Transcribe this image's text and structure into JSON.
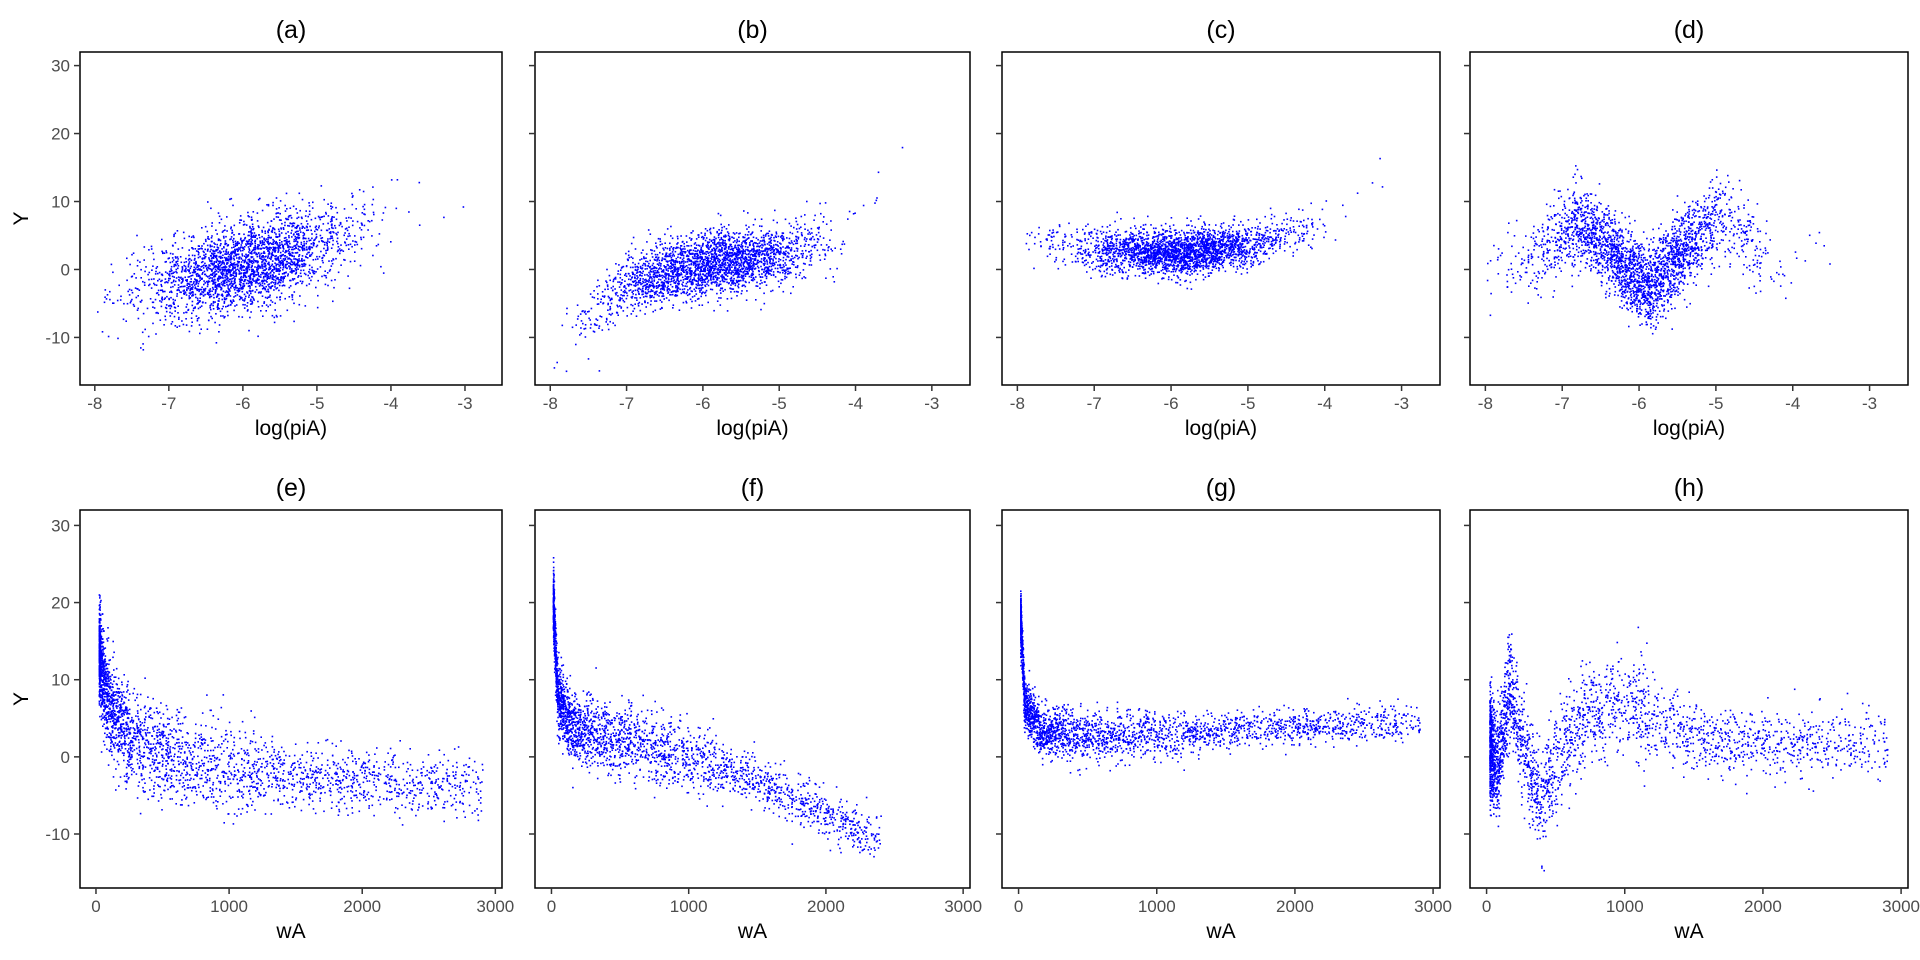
{
  "chart_data": [
    {
      "type": "scatter",
      "panel": "(a)",
      "title": "(a)",
      "xlabel": "log(piA)",
      "ylabel": "Y",
      "xlim": [
        -8.2,
        -2.5
      ],
      "ylim": [
        -17,
        32
      ],
      "xticks": [
        -8,
        -7,
        -6,
        -5,
        -4,
        -3
      ],
      "yticks": [
        -10,
        0,
        10,
        20,
        30
      ],
      "show_ytick_labels": true,
      "point_color": "#0000ff",
      "trend": [
        [
          -8.0,
          -3.5
        ],
        [
          -7.0,
          -2.0
        ],
        [
          -6.0,
          0.5
        ],
        [
          -5.0,
          3.5
        ],
        [
          -4.0,
          8.0
        ],
        [
          -3.2,
          13.0
        ]
      ],
      "spread": 3.2,
      "x_range": [
        -8.0,
        -2.9
      ]
    },
    {
      "type": "scatter",
      "panel": "(b)",
      "title": "(b)",
      "xlabel": "log(piA)",
      "ylabel": "",
      "xlim": [
        -8.2,
        -2.5
      ],
      "ylim": [
        -17,
        32
      ],
      "xticks": [
        -8,
        -7,
        -6,
        -5,
        -4,
        -3
      ],
      "yticks": [
        -10,
        0,
        10,
        20,
        30
      ],
      "show_ytick_labels": false,
      "point_color": "#0000ff",
      "trend": [
        [
          -8.0,
          -14.0
        ],
        [
          -7.5,
          -7.0
        ],
        [
          -7.0,
          -2.0
        ],
        [
          -6.0,
          1.0
        ],
        [
          -5.0,
          2.0
        ],
        [
          -4.2,
          5.0
        ],
        [
          -3.6,
          12.0
        ],
        [
          -3.0,
          24.0
        ]
      ],
      "spread": 2.3,
      "x_range": [
        -8.0,
        -2.9
      ]
    },
    {
      "type": "scatter",
      "panel": "(c)",
      "title": "(c)",
      "xlabel": "log(piA)",
      "ylabel": "",
      "xlim": [
        -8.2,
        -2.5
      ],
      "ylim": [
        -17,
        32
      ],
      "xticks": [
        -8,
        -7,
        -6,
        -5,
        -4,
        -3
      ],
      "yticks": [
        -10,
        0,
        10,
        20,
        30
      ],
      "show_ytick_labels": false,
      "point_color": "#0000ff",
      "trend": [
        [
          -8.0,
          4.5
        ],
        [
          -7.0,
          3.0
        ],
        [
          -6.0,
          2.5
        ],
        [
          -5.0,
          3.5
        ],
        [
          -4.2,
          6.0
        ],
        [
          -3.5,
          12.0
        ],
        [
          -3.0,
          21.0
        ]
      ],
      "spread": 1.6,
      "x_range": [
        -7.9,
        -2.9
      ]
    },
    {
      "type": "scatter",
      "panel": "(d)",
      "title": "(d)",
      "xlabel": "log(piA)",
      "ylabel": "",
      "xlim": [
        -8.2,
        -2.5
      ],
      "ylim": [
        -17,
        32
      ],
      "xticks": [
        -8,
        -7,
        -6,
        -5,
        -4,
        -3
      ],
      "yticks": [
        -10,
        0,
        10,
        20,
        30
      ],
      "show_ytick_labels": false,
      "point_color": "#0000ff",
      "trend": [
        [
          -8.0,
          -1.0
        ],
        [
          -7.3,
          2.0
        ],
        [
          -6.8,
          7.0
        ],
        [
          -6.4,
          3.0
        ],
        [
          -5.9,
          -3.0
        ],
        [
          -5.5,
          2.0
        ],
        [
          -5.0,
          8.0
        ],
        [
          -4.6,
          5.0
        ],
        [
          -4.2,
          -2.0
        ],
        [
          -3.7,
          3.0
        ],
        [
          -3.2,
          10.0
        ]
      ],
      "spread": 3.0,
      "x_range": [
        -8.0,
        -3.0
      ]
    },
    {
      "type": "scatter",
      "panel": "(e)",
      "title": "(e)",
      "xlabel": "wA",
      "ylabel": "Y",
      "xlim": [
        -120,
        3050
      ],
      "ylim": [
        -17,
        32
      ],
      "xticks": [
        0,
        1000,
        2000,
        3000
      ],
      "yticks": [
        -10,
        0,
        10,
        20,
        30
      ],
      "show_ytick_labels": true,
      "point_color": "#0000ff",
      "trend": [
        [
          20,
          14.0
        ],
        [
          60,
          9.0
        ],
        [
          150,
          5.0
        ],
        [
          300,
          2.5
        ],
        [
          600,
          0.0
        ],
        [
          1000,
          -1.5
        ],
        [
          1500,
          -2.5
        ],
        [
          2900,
          -4.0
        ]
      ],
      "spread": 3.0,
      "x_range": [
        20,
        2900
      ]
    },
    {
      "type": "scatter",
      "panel": "(f)",
      "title": "(f)",
      "xlabel": "wA",
      "ylabel": "",
      "xlim": [
        -120,
        3050
      ],
      "ylim": [
        -17,
        32
      ],
      "xticks": [
        0,
        1000,
        2000,
        3000
      ],
      "yticks": [
        -10,
        0,
        10,
        20,
        30
      ],
      "show_ytick_labels": false,
      "point_color": "#0000ff",
      "trend": [
        [
          10,
          20.0
        ],
        [
          40,
          8.0
        ],
        [
          150,
          4.0
        ],
        [
          500,
          2.0
        ],
        [
          1000,
          0.0
        ],
        [
          1500,
          -3.0
        ],
        [
          2000,
          -7.5
        ],
        [
          2400,
          -11.0
        ]
      ],
      "spread": 2.2,
      "x_range": [
        10,
        2400
      ]
    },
    {
      "type": "scatter",
      "panel": "(g)",
      "title": "(g)",
      "xlabel": "wA",
      "ylabel": "",
      "xlim": [
        -120,
        3050
      ],
      "ylim": [
        -17,
        32
      ],
      "xticks": [
        0,
        1000,
        2000,
        3000
      ],
      "yticks": [
        -10,
        0,
        10,
        20,
        30
      ],
      "show_ytick_labels": false,
      "point_color": "#0000ff",
      "trend": [
        [
          10,
          18.0
        ],
        [
          40,
          7.0
        ],
        [
          150,
          3.5
        ],
        [
          500,
          2.5
        ],
        [
          1000,
          3.0
        ],
        [
          2000,
          4.0
        ],
        [
          2900,
          4.5
        ]
      ],
      "spread": 1.6,
      "x_range": [
        10,
        2900
      ]
    },
    {
      "type": "scatter",
      "panel": "(h)",
      "title": "(h)",
      "xlabel": "wA",
      "ylabel": "",
      "xlim": [
        -120,
        3050
      ],
      "ylim": [
        -17,
        32
      ],
      "xticks": [
        0,
        1000,
        2000,
        3000
      ],
      "yticks": [
        -10,
        0,
        10,
        20,
        30
      ],
      "show_ytick_labels": false,
      "point_color": "#0000ff",
      "trend": [
        [
          20,
          2.0
        ],
        [
          80,
          -2.0
        ],
        [
          160,
          10.0
        ],
        [
          250,
          2.0
        ],
        [
          380,
          -6.0
        ],
        [
          550,
          2.0
        ],
        [
          900,
          8.0
        ],
        [
          1200,
          5.0
        ],
        [
          1600,
          2.0
        ],
        [
          2900,
          2.0
        ]
      ],
      "spread": 3.2,
      "x_range": [
        20,
        2900
      ]
    }
  ]
}
